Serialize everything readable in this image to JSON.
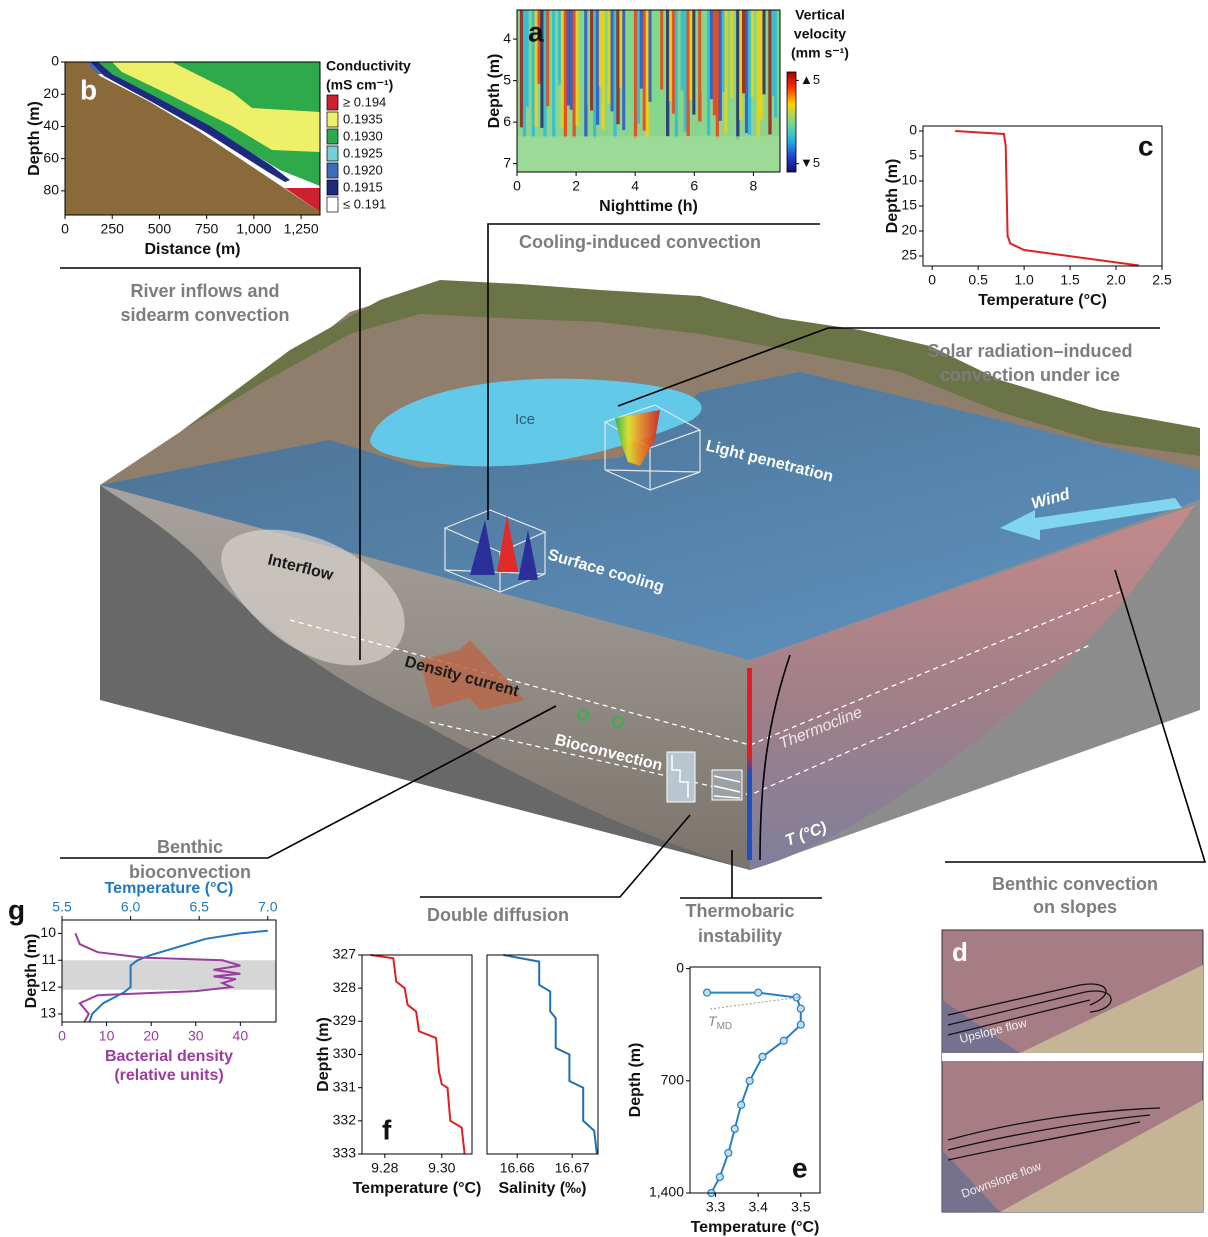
{
  "diagram": {
    "cooling": "Cooling-induced convection",
    "river": [
      "River inflows and",
      "sidearm convection"
    ],
    "solar": [
      "Solar radiation–induced",
      "convection under ice"
    ],
    "ice": "Ice",
    "light": "Light penetration",
    "surface_cooling": "Surface cooling",
    "wind": "Wind",
    "interflow": "Interflow",
    "density_current": "Density current",
    "bioconvection": "Bioconvection",
    "thermocline": "Thermocline",
    "t_axis": "T (°C)",
    "benthic_bio": [
      "Benthic",
      "bioconvection"
    ],
    "double_diffusion": "Double diffusion",
    "thermobaric": [
      "Thermobaric",
      "instability"
    ],
    "benthic_slopes": [
      "Benthic convection",
      "on slopes"
    ],
    "panel_d": {
      "label": "d",
      "upslope": "Upslope flow",
      "downslope": "Downslope flow"
    }
  },
  "chart_data": [
    {
      "type": "heatmap",
      "label": "a",
      "xlabel": "Nighttime (h)",
      "ylabel": "Depth (m)",
      "xlim": [
        0,
        8.9
      ],
      "xticks": [
        0,
        2,
        4,
        6,
        8
      ],
      "ylim": [
        3.3,
        7.2
      ],
      "yticks": [
        4,
        5,
        6,
        7
      ],
      "invert_y": true,
      "colorbar_title": [
        "Vertical",
        "velocity",
        "(mm s⁻¹)"
      ],
      "colorbar_lim": [
        -6,
        6
      ],
      "colorbar_ticks": [
        {
          "value": 5,
          "label": "▲5"
        },
        {
          "value": -5,
          "label": "▼5"
        }
      ]
    },
    {
      "type": "contour",
      "label": "b",
      "xlabel": "Distance (m)",
      "ylabel": "Depth (m)",
      "xlim": [
        0,
        1350
      ],
      "xticks": [
        0,
        250,
        500,
        750,
        {
          "value": 1000,
          "label": "1,000"
        },
        {
          "value": 1250,
          "label": "1,250"
        }
      ],
      "ylim": [
        0,
        95
      ],
      "yticks": [
        0,
        20,
        40,
        60,
        80
      ],
      "invert_y": true,
      "legend_title": [
        "Conductivity",
        "(mS cm⁻¹)"
      ],
      "levels": [
        {
          "label": "≥ 0.194",
          "color": "#cf2030"
        },
        {
          "label": "0.1935",
          "color": "#eef06a"
        },
        {
          "label": "0.1930",
          "color": "#2eaa4a"
        },
        {
          "label": "0.1925",
          "color": "#72d0d6"
        },
        {
          "label": "0.1920",
          "color": "#3a6fc0"
        },
        {
          "label": "0.1915",
          "color": "#1d2a80"
        },
        {
          "label": "≤ 0.191",
          "color": "#ffffff"
        }
      ]
    },
    {
      "type": "line",
      "label": "c",
      "xlabel": "Temperature (°C)",
      "ylabel": "Depth (m)",
      "xlim": [
        -0.1,
        2.5
      ],
      "xticks": [
        0,
        0.5,
        {
          "value": 1,
          "label": "1.0"
        },
        1.5,
        {
          "value": 2,
          "label": "2.0"
        },
        2.5
      ],
      "ylim": [
        -1,
        27
      ],
      "yticks": [
        0,
        5,
        10,
        15,
        20,
        25
      ],
      "invert_y": true,
      "color": "#e02020",
      "x": [
        0.25,
        0.78,
        0.8,
        0.82,
        0.85,
        1.0,
        2.25
      ],
      "values": [
        0,
        0.6,
        3,
        21,
        22.5,
        23.8,
        26.9
      ]
    },
    {
      "type": "line",
      "label": "g",
      "ylabel": "Depth (m)",
      "xlabel": [
        "Bacterial density",
        "(relative units)"
      ],
      "xlim": [
        0,
        48
      ],
      "xticks": [
        0,
        10,
        20,
        30,
        40
      ],
      "x2label": "Temperature (°C)",
      "x2lim": [
        5.5,
        7.06
      ],
      "x2ticks": [
        5.5,
        {
          "value": 6,
          "label": "6.0"
        },
        6.5,
        {
          "value": 7,
          "label": "7.0"
        }
      ],
      "ylim": [
        9.5,
        13.3
      ],
      "yticks": [
        10,
        11,
        12,
        13
      ],
      "invert_y": true,
      "band": [
        11,
        12.1
      ],
      "band_color": "#d6d6d6",
      "series": [
        {
          "color": "#1f78c0",
          "axis": "x2",
          "x": [
            7.0,
            6.8,
            6.55,
            6.35,
            6.15,
            6.05,
            6.0,
            6.0,
            5.95,
            5.8,
            5.72,
            5.7
          ],
          "values": [
            9.9,
            10.0,
            10.2,
            10.5,
            10.8,
            11.0,
            11.2,
            12.0,
            12.2,
            12.6,
            13.0,
            13.3
          ]
        },
        {
          "color": "#9b3ca0",
          "x": [
            3,
            4,
            8,
            18,
            36,
            40,
            34,
            40,
            34,
            39,
            36,
            38,
            30,
            8,
            4,
            6,
            5
          ],
          "values": [
            10,
            10.4,
            10.7,
            10.9,
            11.0,
            11.2,
            11.35,
            11.5,
            11.6,
            11.7,
            11.85,
            12.0,
            12.15,
            12.3,
            12.6,
            13.0,
            13.3
          ]
        }
      ]
    },
    {
      "type": "line",
      "label": "f",
      "xlabel": "Temperature (°C)",
      "ylabel": "Depth (m)",
      "xlim": [
        9.272,
        9.3106
      ],
      "xticks": [
        9.28,
        {
          "value": 9.3,
          "label": "9.30"
        }
      ],
      "ylim": [
        327,
        333
      ],
      "yticks": [
        327,
        328,
        329,
        330,
        331,
        332,
        333
      ],
      "invert_y": true,
      "color": "#e02020",
      "x": [
        9.275,
        9.283,
        9.284,
        9.287,
        9.288,
        9.291,
        9.292,
        9.298,
        9.299,
        9.3,
        9.302,
        9.303,
        9.307,
        9.308
      ],
      "values": [
        327,
        327.1,
        327.8,
        328.0,
        328.5,
        328.7,
        329.3,
        329.5,
        330.5,
        330.9,
        331.0,
        332.0,
        332.2,
        333
      ]
    },
    {
      "type": "line",
      "xlabel": "Salinity (‰)",
      "xlim": [
        16.6545,
        16.6747
      ],
      "xticks": [
        16.66,
        16.67
      ],
      "ylim": [
        327,
        333
      ],
      "invert_y": true,
      "color": "#1f6fb5",
      "x": [
        16.6575,
        16.664,
        16.664,
        16.666,
        16.666,
        16.667,
        16.667,
        16.6695,
        16.6695,
        16.672,
        16.672,
        16.674,
        16.6745
      ],
      "values": [
        327,
        327.2,
        327.9,
        328.1,
        328.7,
        328.9,
        329.8,
        330.0,
        330.8,
        331.0,
        332.0,
        332.3,
        333
      ]
    },
    {
      "type": "line",
      "markers": true,
      "label": "e",
      "xlabel": "Temperature (°C)",
      "ylabel": "Depth (m)",
      "xlim": [
        3.24,
        3.545
      ],
      "xticks": [
        3.3,
        3.4,
        3.5
      ],
      "ylim": [
        -10,
        1400
      ],
      "yticks": [
        0,
        700,
        {
          "value": 1400,
          "label": "1,400"
        }
      ],
      "invert_y": true,
      "color": "#2a7fc0",
      "x": [
        3.28,
        3.4,
        3.49,
        3.5,
        3.5,
        3.46,
        3.41,
        3.38,
        3.36,
        3.345,
        3.33,
        3.31,
        3.29
      ],
      "values": [
        150,
        150,
        180,
        250,
        350,
        450,
        550,
        700,
        850,
        1000,
        1150,
        1300,
        1400
      ],
      "annotation": {
        "text": "T",
        "subscript": "MD"
      }
    }
  ]
}
